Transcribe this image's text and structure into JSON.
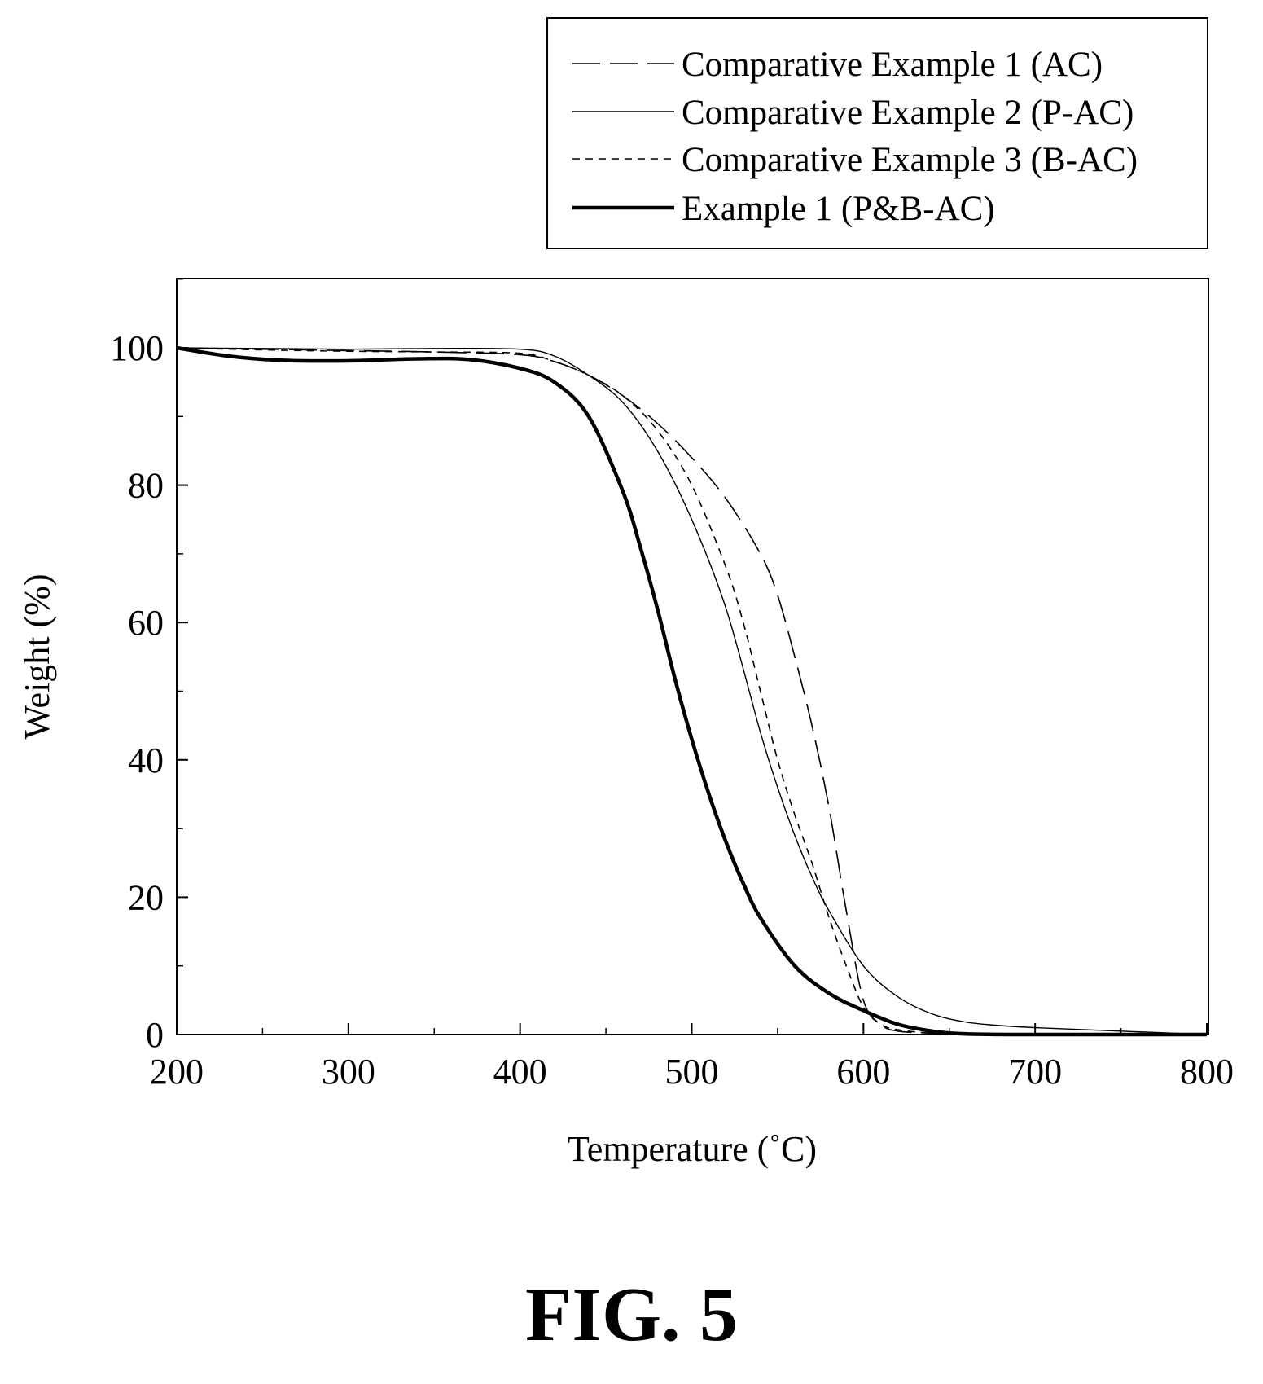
{
  "figure_label": "FIG. 5",
  "chart_data": {
    "type": "line",
    "title": "",
    "xlabel": "Temperature (˚C)",
    "ylabel": "Weight (%)",
    "xlim": [
      200,
      800
    ],
    "ylim": [
      0,
      110
    ],
    "xticks": [
      200,
      300,
      400,
      500,
      600,
      700,
      800
    ],
    "yticks": [
      0,
      20,
      40,
      60,
      80,
      100
    ],
    "grid": false,
    "legend_position": "top-right, above plot",
    "series": [
      {
        "name": "Comparative Example 1 (AC)",
        "style": "long-dash",
        "x": [
          200,
          250,
          300,
          350,
          400,
          420,
          440,
          460,
          480,
          500,
          520,
          540,
          550,
          560,
          570,
          580,
          590,
          600,
          610,
          620,
          640,
          660,
          700,
          800
        ],
        "y": [
          100,
          99.8,
          99.6,
          99.4,
          99.0,
          98.0,
          96.0,
          93.0,
          89.0,
          84.0,
          78.0,
          70.0,
          64.0,
          55.0,
          45.0,
          33.0,
          18.0,
          5.0,
          1.5,
          0.5,
          0.2,
          0.1,
          0.0,
          0.0
        ]
      },
      {
        "name": "Comparative Example 2 (P-AC)",
        "style": "thin-solid",
        "x": [
          200,
          250,
          300,
          350,
          400,
          420,
          440,
          460,
          480,
          500,
          520,
          540,
          550,
          560,
          570,
          580,
          600,
          620,
          640,
          660,
          680,
          700,
          750,
          800
        ],
        "y": [
          100,
          99.9,
          99.8,
          99.9,
          99.8,
          98.8,
          96.0,
          92.0,
          85.0,
          75.0,
          62.0,
          44.0,
          36.0,
          29.0,
          23.0,
          18.0,
          10.0,
          5.5,
          3.0,
          1.8,
          1.3,
          1.0,
          0.5,
          0.0
        ]
      },
      {
        "name": "Comparative Example 3 (B-AC)",
        "style": "short-dash",
        "x": [
          200,
          250,
          300,
          350,
          400,
          420,
          440,
          460,
          480,
          500,
          520,
          530,
          540,
          550,
          560,
          570,
          580,
          590,
          600,
          610,
          620,
          640,
          660,
          700,
          800
        ],
        "y": [
          100,
          99.7,
          99.5,
          99.4,
          99.2,
          98.0,
          96.0,
          93.0,
          88.0,
          80.0,
          68.0,
          60.0,
          50.0,
          40.0,
          32.0,
          25.0,
          17.0,
          10.0,
          4.0,
          1.5,
          0.7,
          0.2,
          0.1,
          0.0,
          0.0
        ]
      },
      {
        "name": "Example 1 (P&B-AC)",
        "style": "bold-solid",
        "x": [
          200,
          230,
          260,
          300,
          340,
          370,
          400,
          420,
          440,
          460,
          470,
          480,
          490,
          500,
          510,
          520,
          530,
          540,
          560,
          580,
          600,
          620,
          640,
          660,
          700,
          800
        ],
        "y": [
          100,
          98.8,
          98.2,
          98.1,
          98.4,
          98.3,
          97.0,
          95.0,
          90.0,
          79.0,
          71.0,
          62.0,
          52.0,
          43.0,
          35.0,
          28.0,
          22.0,
          17.0,
          10.0,
          6.0,
          3.5,
          1.5,
          0.5,
          0.1,
          0.0,
          0.0
        ]
      }
    ]
  }
}
